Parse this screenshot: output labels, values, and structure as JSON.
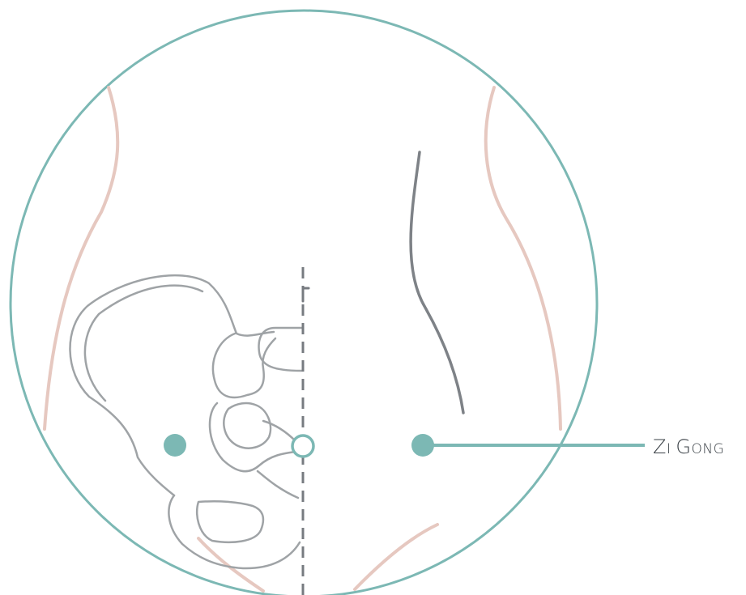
{
  "point_label": {
    "parts": [
      {
        "text": "Z",
        "case": "cap"
      },
      {
        "text": "I",
        "case": "sc"
      },
      {
        "text": " ",
        "case": "sc"
      },
      {
        "text": "G",
        "case": "cap"
      },
      {
        "text": "ONG",
        "case": "sc"
      }
    ],
    "full_text": "Zi Gong"
  },
  "colors": {
    "teal": "#7cb8b4",
    "skin_line": "#e6c8c0",
    "bone": "#9fa3a6",
    "dark_line": "#7e8287",
    "midline": "#777b80"
  }
}
